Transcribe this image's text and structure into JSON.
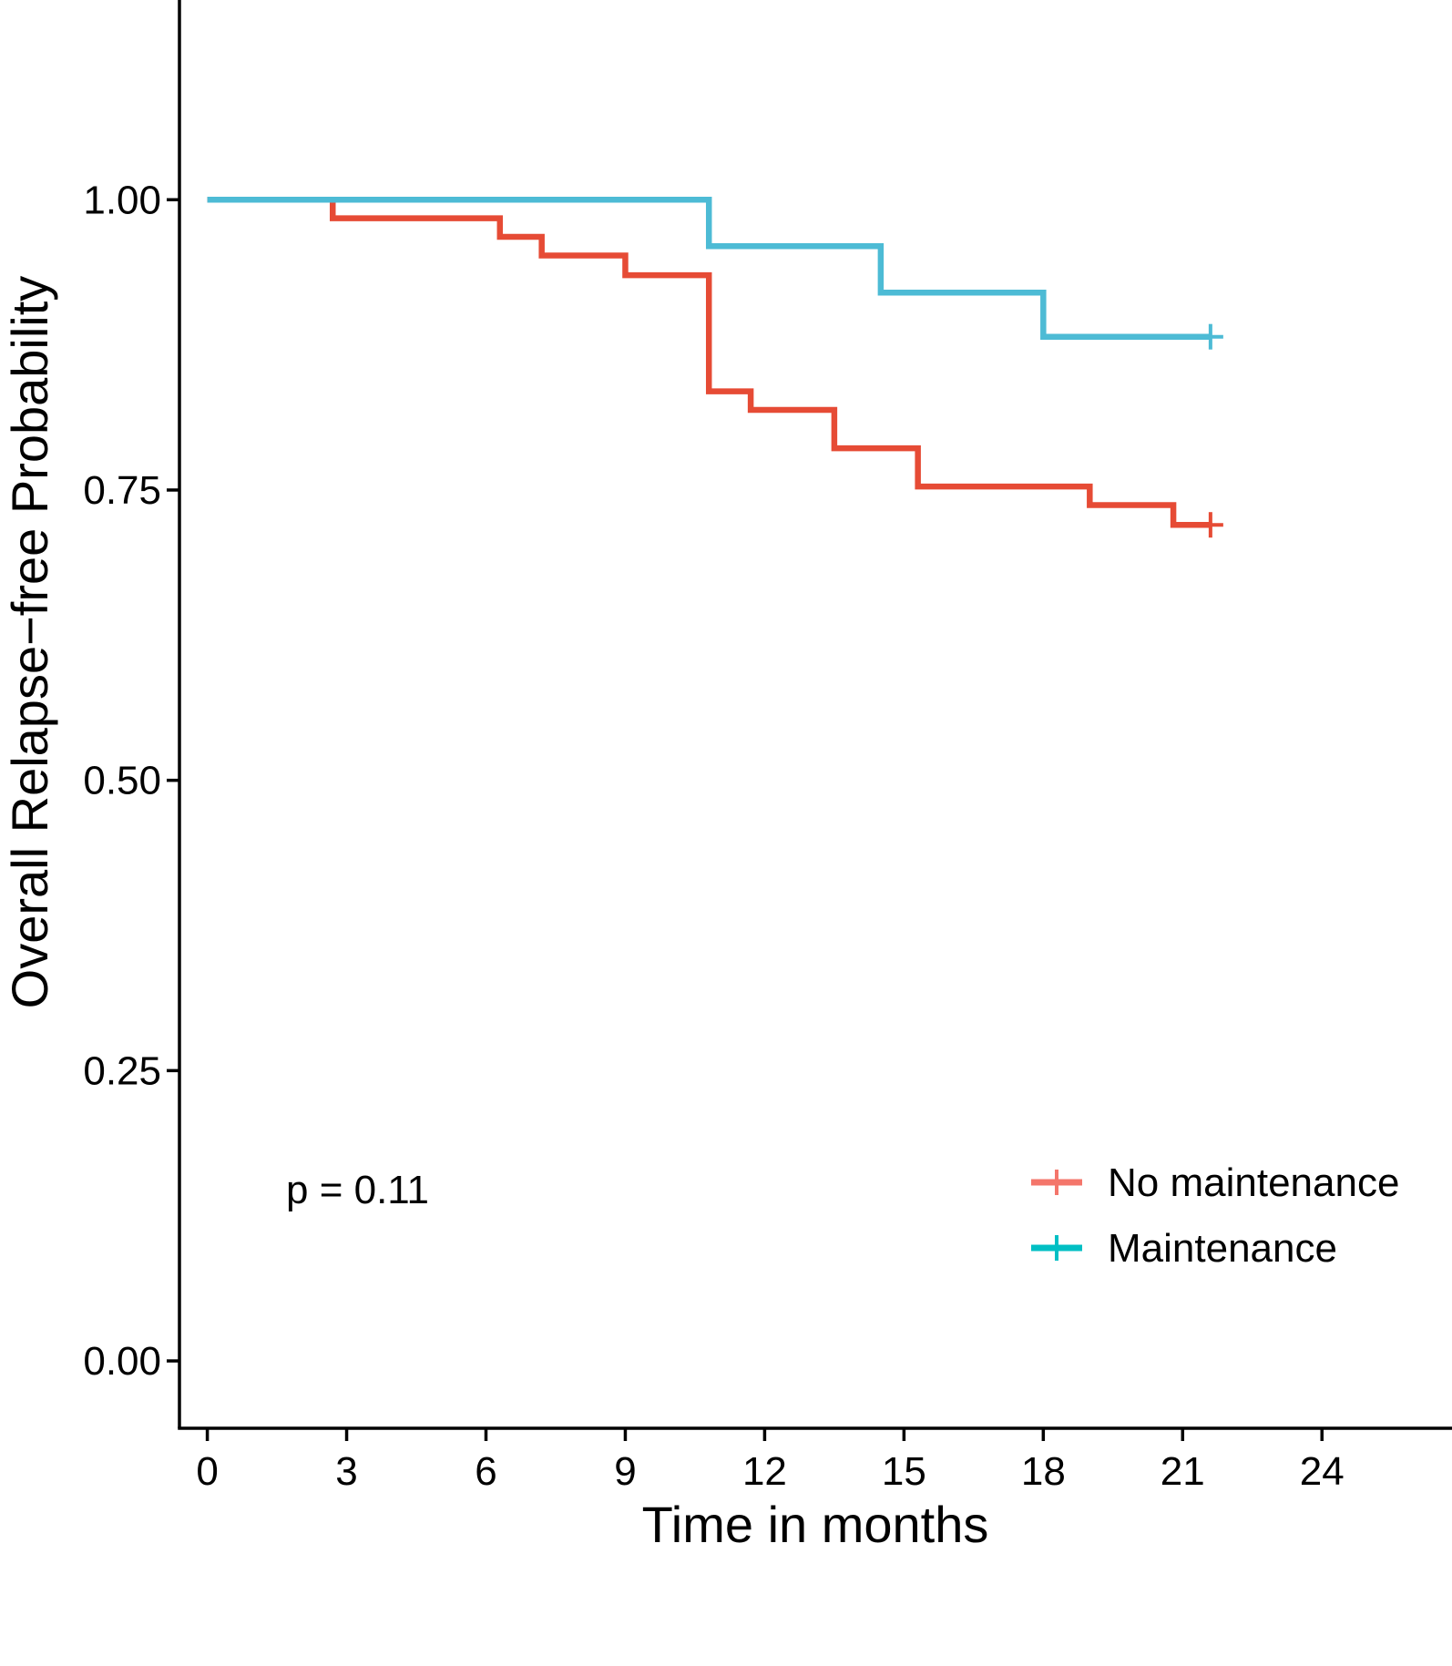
{
  "chart_data": {
    "type": "line",
    "subtype": "kaplan-meier step",
    "title": "",
    "xlabel": "Time in months",
    "ylabel": "Overall Relapse−free Probability",
    "xlim": [
      -0.6,
      26.8
    ],
    "ylim": [
      -0.058,
      1.172
    ],
    "x_ticks": [
      0,
      3,
      6,
      9,
      12,
      15,
      18,
      21,
      24
    ],
    "y_ticks": [
      0.0,
      0.25,
      0.5,
      0.75,
      1.0
    ],
    "x_tick_labels": [
      "0",
      "3",
      "6",
      "9",
      "12",
      "15",
      "18",
      "21",
      "24"
    ],
    "y_tick_labels": [
      "0.00",
      "0.25",
      "0.50",
      "0.75",
      "1.00"
    ],
    "grid": false,
    "legend_position": "bottom-right",
    "annotation": "p = 0.11",
    "series": [
      {
        "name": "No maintenance",
        "color": "#e64b35",
        "legend_color": "#f4766b",
        "steps": [
          [
            0,
            1.0
          ],
          [
            2.7,
            0.984
          ],
          [
            6.3,
            0.968
          ],
          [
            7.2,
            0.952
          ],
          [
            9.0,
            0.935
          ],
          [
            10.8,
            0.835
          ],
          [
            11.7,
            0.819
          ],
          [
            13.5,
            0.786
          ],
          [
            15.3,
            0.753
          ],
          [
            19.0,
            0.737
          ],
          [
            20.8,
            0.72
          ]
        ],
        "end_x": 21.6,
        "censor_points": [
          [
            21.6,
            0.72
          ]
        ]
      },
      {
        "name": "Maintenance",
        "color": "#4dbbd5",
        "legend_color": "#00bfc4",
        "steps": [
          [
            0,
            1.0
          ],
          [
            10.8,
            0.96
          ],
          [
            14.5,
            0.92
          ],
          [
            18.0,
            0.882
          ]
        ],
        "end_x": 21.6,
        "censor_points": [
          [
            21.6,
            0.882
          ]
        ]
      }
    ]
  }
}
